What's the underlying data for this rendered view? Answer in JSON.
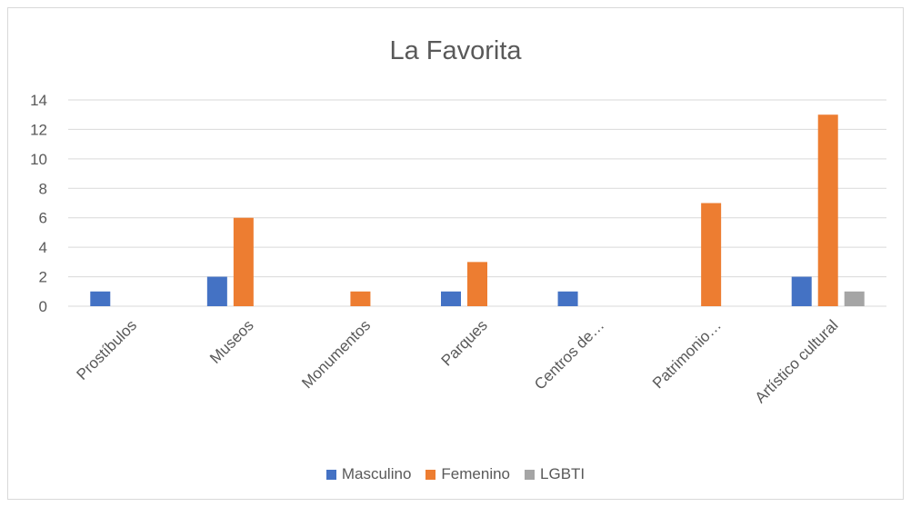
{
  "chart_data": {
    "type": "bar",
    "title": "La Favorita",
    "categories": [
      "Prostíbulos",
      "Museos",
      "Monumentos",
      "Parques",
      "Centros de…",
      "Patrimonio…",
      "Artístico cultural"
    ],
    "series": [
      {
        "name": "Masculino",
        "color": "#4472c4",
        "values": [
          1,
          2,
          0,
          1,
          1,
          0,
          2
        ]
      },
      {
        "name": "Femenino",
        "color": "#ed7d31",
        "values": [
          0,
          6,
          1,
          3,
          0,
          7,
          13
        ]
      },
      {
        "name": "LGBTI",
        "color": "#a5a5a5",
        "values": [
          0,
          0,
          0,
          0,
          0,
          0,
          1
        ]
      }
    ],
    "yticks": [
      0,
      2,
      4,
      6,
      8,
      10,
      12,
      14
    ],
    "ylim": [
      0,
      14
    ],
    "grid": true,
    "legend": "bottom"
  }
}
